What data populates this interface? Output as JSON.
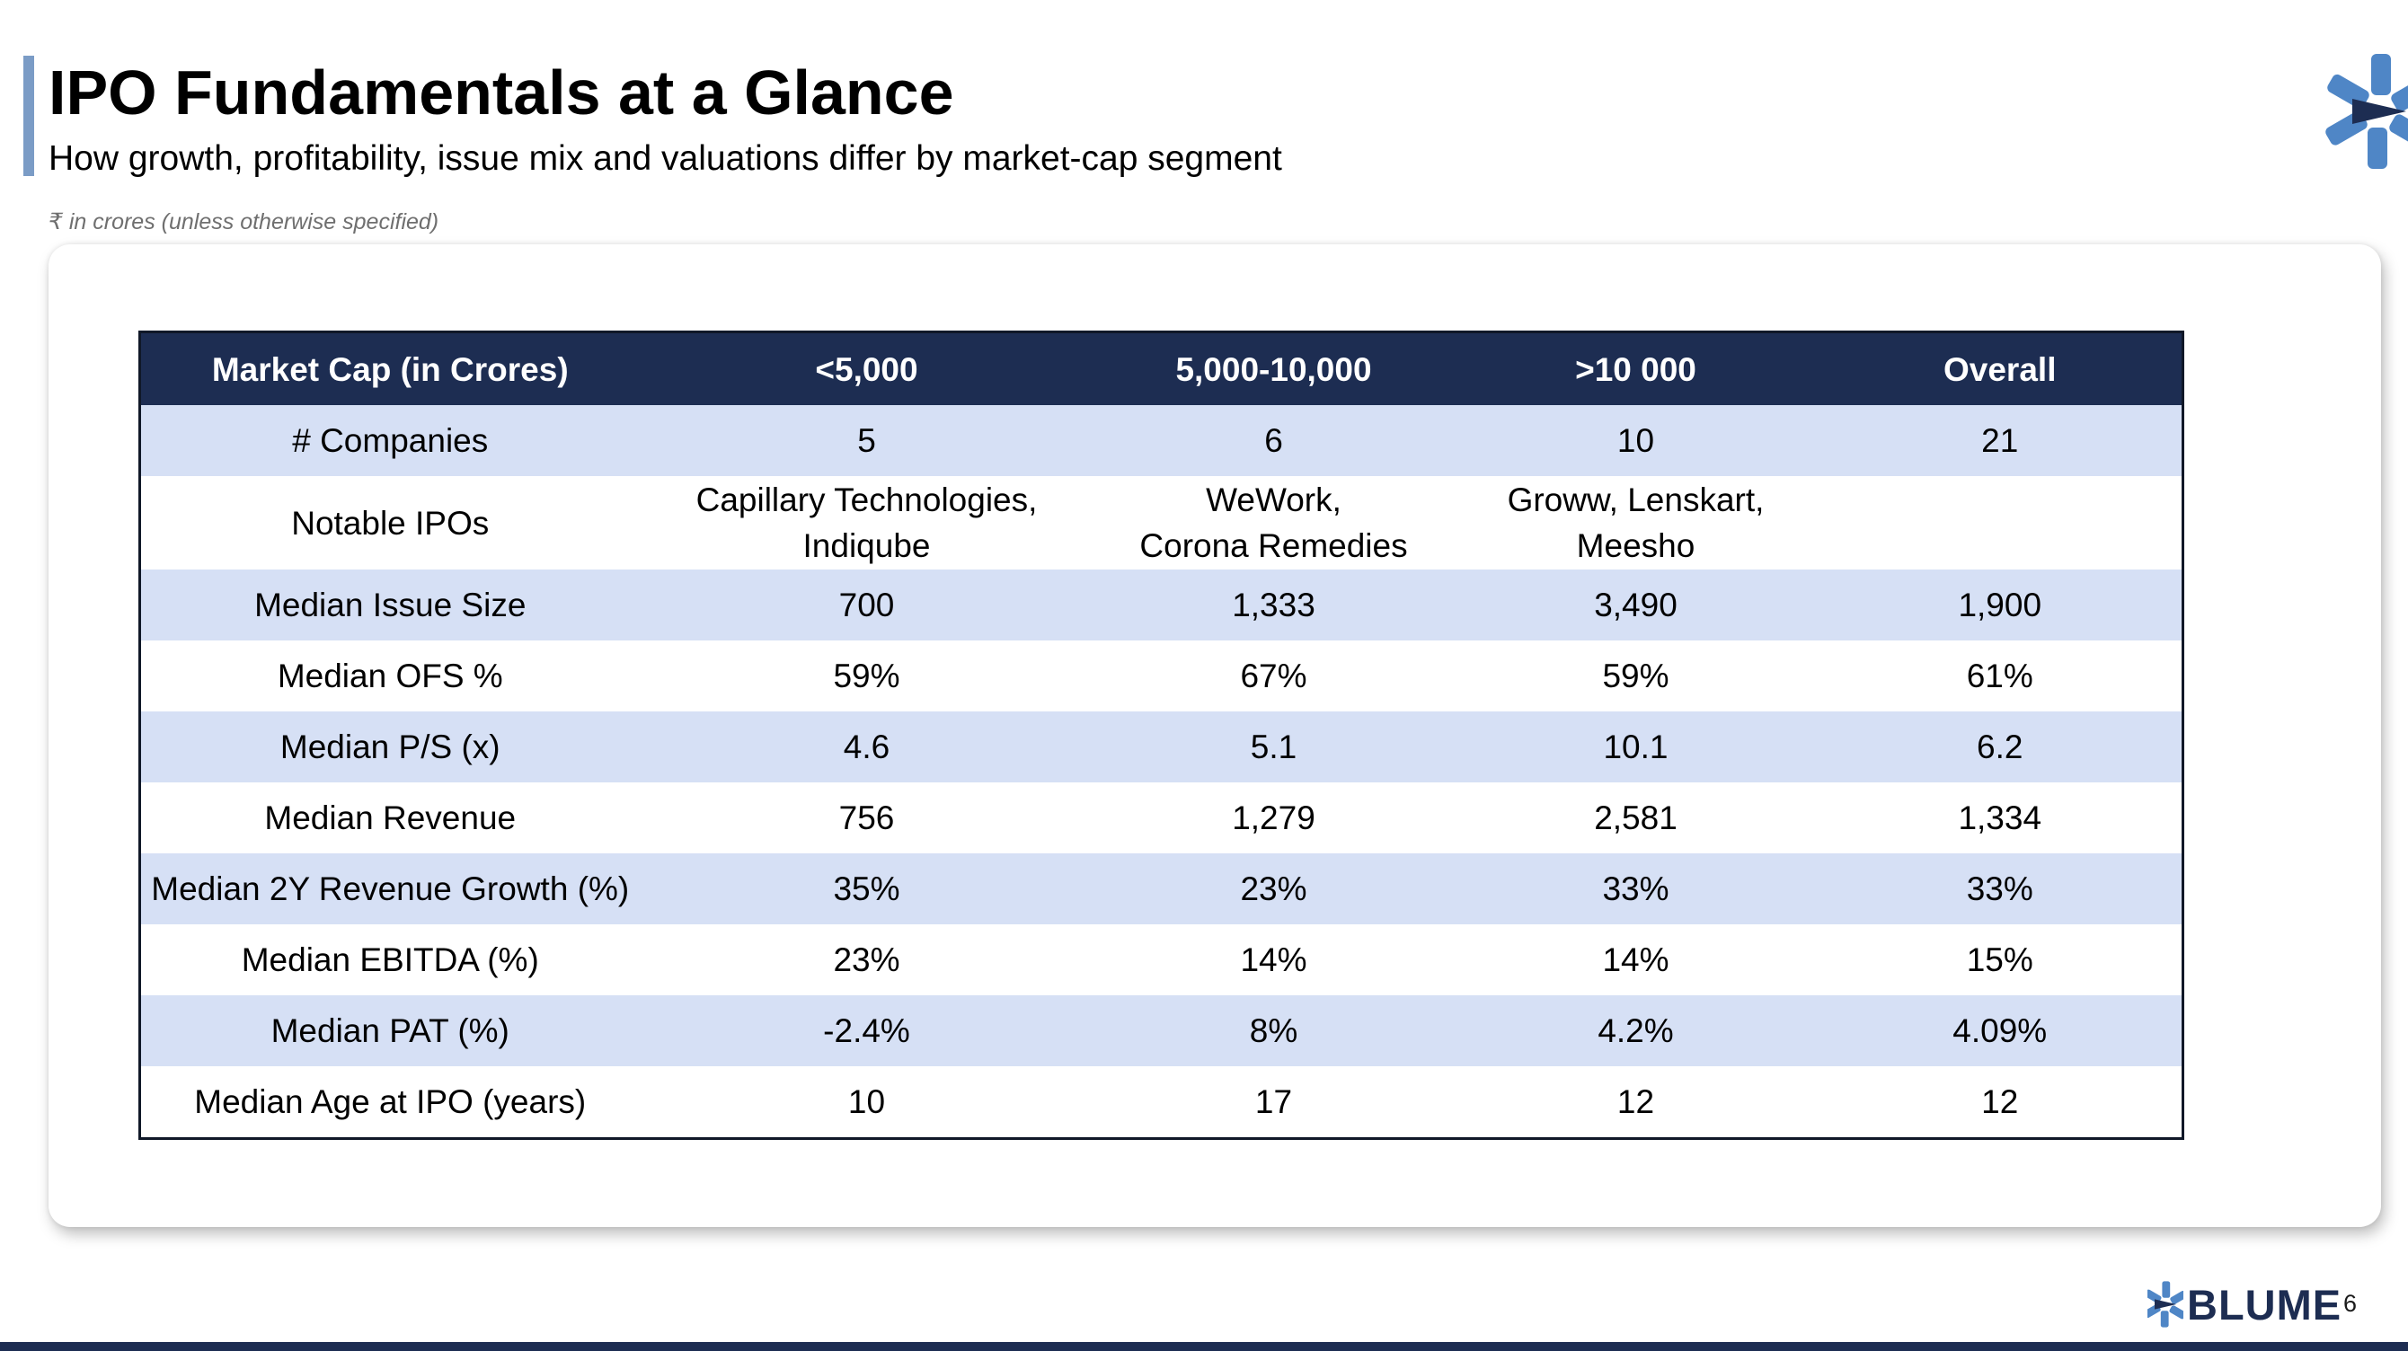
{
  "header": {
    "title": "IPO Fundamentals at a Glance",
    "subtitle": "How growth, profitability, issue mix and valuations differ by market-cap segment",
    "note": "₹ in crores (unless otherwise specified)"
  },
  "table": {
    "columns": [
      "Market Cap (in Crores)",
      "<5,000",
      "5,000-10,000",
      ">10 000",
      "Overall"
    ],
    "rows": [
      [
        "# Companies",
        "5",
        "6",
        "10",
        "21"
      ],
      [
        "Notable IPOs",
        "Capillary Technologies,\nIndiqube",
        "WeWork,\nCorona Remedies",
        "Groww, Lenskart,\nMeesho",
        ""
      ],
      [
        "Median Issue Size",
        "700",
        "1,333",
        "3,490",
        "1,900"
      ],
      [
        "Median OFS %",
        "59%",
        "67%",
        "59%",
        "61%"
      ],
      [
        "Median P/S (x)",
        "4.6",
        "5.1",
        "10.1",
        "6.2"
      ],
      [
        "Median Revenue",
        "756",
        "1,279",
        "2,581",
        "1,334"
      ],
      [
        "Median 2Y Revenue Growth (%)",
        "35%",
        "23%",
        "33%",
        "33%"
      ],
      [
        "Median EBITDA (%)",
        "23%",
        "14%",
        "14%",
        "15%"
      ],
      [
        "Median PAT (%)",
        "-2.4%",
        "8%",
        "4.2%",
        "4.09%"
      ],
      [
        "Median Age at IPO (years)",
        "10",
        "17",
        "12",
        "12"
      ]
    ]
  },
  "footer": {
    "brand": "BLUME",
    "page_number": "6"
  },
  "colors": {
    "header_fill": "#1d2d52",
    "band_fill": "#d6e0f5",
    "accent": "#7b9cc6",
    "logo_blue": "#4f86c6",
    "logo_navy": "#1d2d52"
  },
  "icons": {
    "corner": "blume-star-icon",
    "footer": "blume-star-icon"
  }
}
